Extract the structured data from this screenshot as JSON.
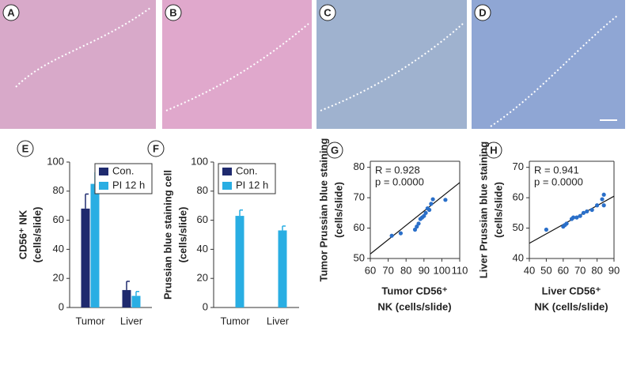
{
  "panels": [
    "A",
    "B",
    "C",
    "D"
  ],
  "chart_data": [
    {
      "type": "bar",
      "letter": "E",
      "categories": [
        "Tumor",
        "Liver"
      ],
      "series": [
        {
          "name": "Con.",
          "color": "#1f2a6e",
          "values": [
            68,
            12
          ],
          "errors": [
            10,
            6
          ]
        },
        {
          "name": "PI 12 h",
          "color": "#29aee3",
          "values": [
            85,
            8
          ],
          "errors": [
            8,
            3
          ]
        }
      ],
      "ylim": [
        0,
        100
      ],
      "yticks": [
        0,
        20,
        40,
        60,
        80,
        100
      ],
      "ylabel": [
        "CD56⁺ NK",
        "(cells/slide)"
      ]
    },
    {
      "type": "bar",
      "letter": "F",
      "categories": [
        "Tumor",
        "Liver"
      ],
      "series": [
        {
          "name": "Con.",
          "color": "#1f2a6e",
          "values": [
            null,
            null
          ],
          "errors": [
            null,
            null
          ]
        },
        {
          "name": "PI 12 h",
          "color": "#29aee3",
          "values": [
            63,
            53
          ],
          "errors": [
            4,
            3
          ]
        }
      ],
      "ylim": [
        0,
        100
      ],
      "yticks": [
        0,
        20,
        40,
        60,
        80,
        100
      ],
      "ylabel": [
        "Prussian blue staining cell",
        "(cells/slide)"
      ]
    },
    {
      "type": "scatter",
      "letter": "G",
      "color": "#2a6fc9",
      "x": [
        72,
        77,
        85,
        86,
        87,
        88,
        89,
        90,
        91,
        92,
        93,
        94,
        95,
        102
      ],
      "y": [
        57.5,
        58.3,
        59.5,
        60.5,
        61.5,
        63,
        63.5,
        64,
        65,
        66.5,
        66,
        68,
        69.5,
        69.3
      ],
      "fit": {
        "x": [
          60,
          110
        ],
        "y": [
          51.5,
          75
        ]
      },
      "xlim": [
        60,
        110
      ],
      "xticks": [
        60,
        70,
        80,
        90,
        100,
        110
      ],
      "ylim": [
        50,
        82
      ],
      "yticks": [
        50,
        60,
        70,
        80
      ],
      "annotations": [
        "R = 0.928",
        "p = 0.0000"
      ],
      "xlabel": [
        "Tumor CD56⁺",
        "NK (cells/slide)"
      ],
      "ylabel": [
        "Tumor Prussian blue staining",
        "(cells/slide)"
      ]
    },
    {
      "type": "scatter",
      "letter": "H",
      "color": "#2a6fc9",
      "x": [
        50,
        60,
        61,
        62,
        65,
        66,
        68,
        70,
        72,
        74,
        77,
        80,
        83,
        84,
        84
      ],
      "y": [
        49.5,
        50.5,
        51,
        51.5,
        53,
        53.5,
        53.5,
        54,
        55,
        55.5,
        56,
        57.5,
        59.5,
        61,
        57.5
      ],
      "fit": {
        "x": [
          40,
          90
        ],
        "y": [
          45,
          60.5
        ]
      },
      "xlim": [
        40,
        90
      ],
      "xticks": [
        40,
        50,
        60,
        70,
        80,
        90
      ],
      "ylim": [
        40,
        72
      ],
      "yticks": [
        40,
        50,
        60,
        70
      ],
      "annotations": [
        "R = 0.941",
        "p = 0.0000"
      ],
      "xlabel": [
        "Liver CD56⁺",
        "NK (cells/slide)"
      ],
      "ylabel": [
        "Liver Prussian blue staining",
        "(cells/slide)"
      ]
    }
  ]
}
